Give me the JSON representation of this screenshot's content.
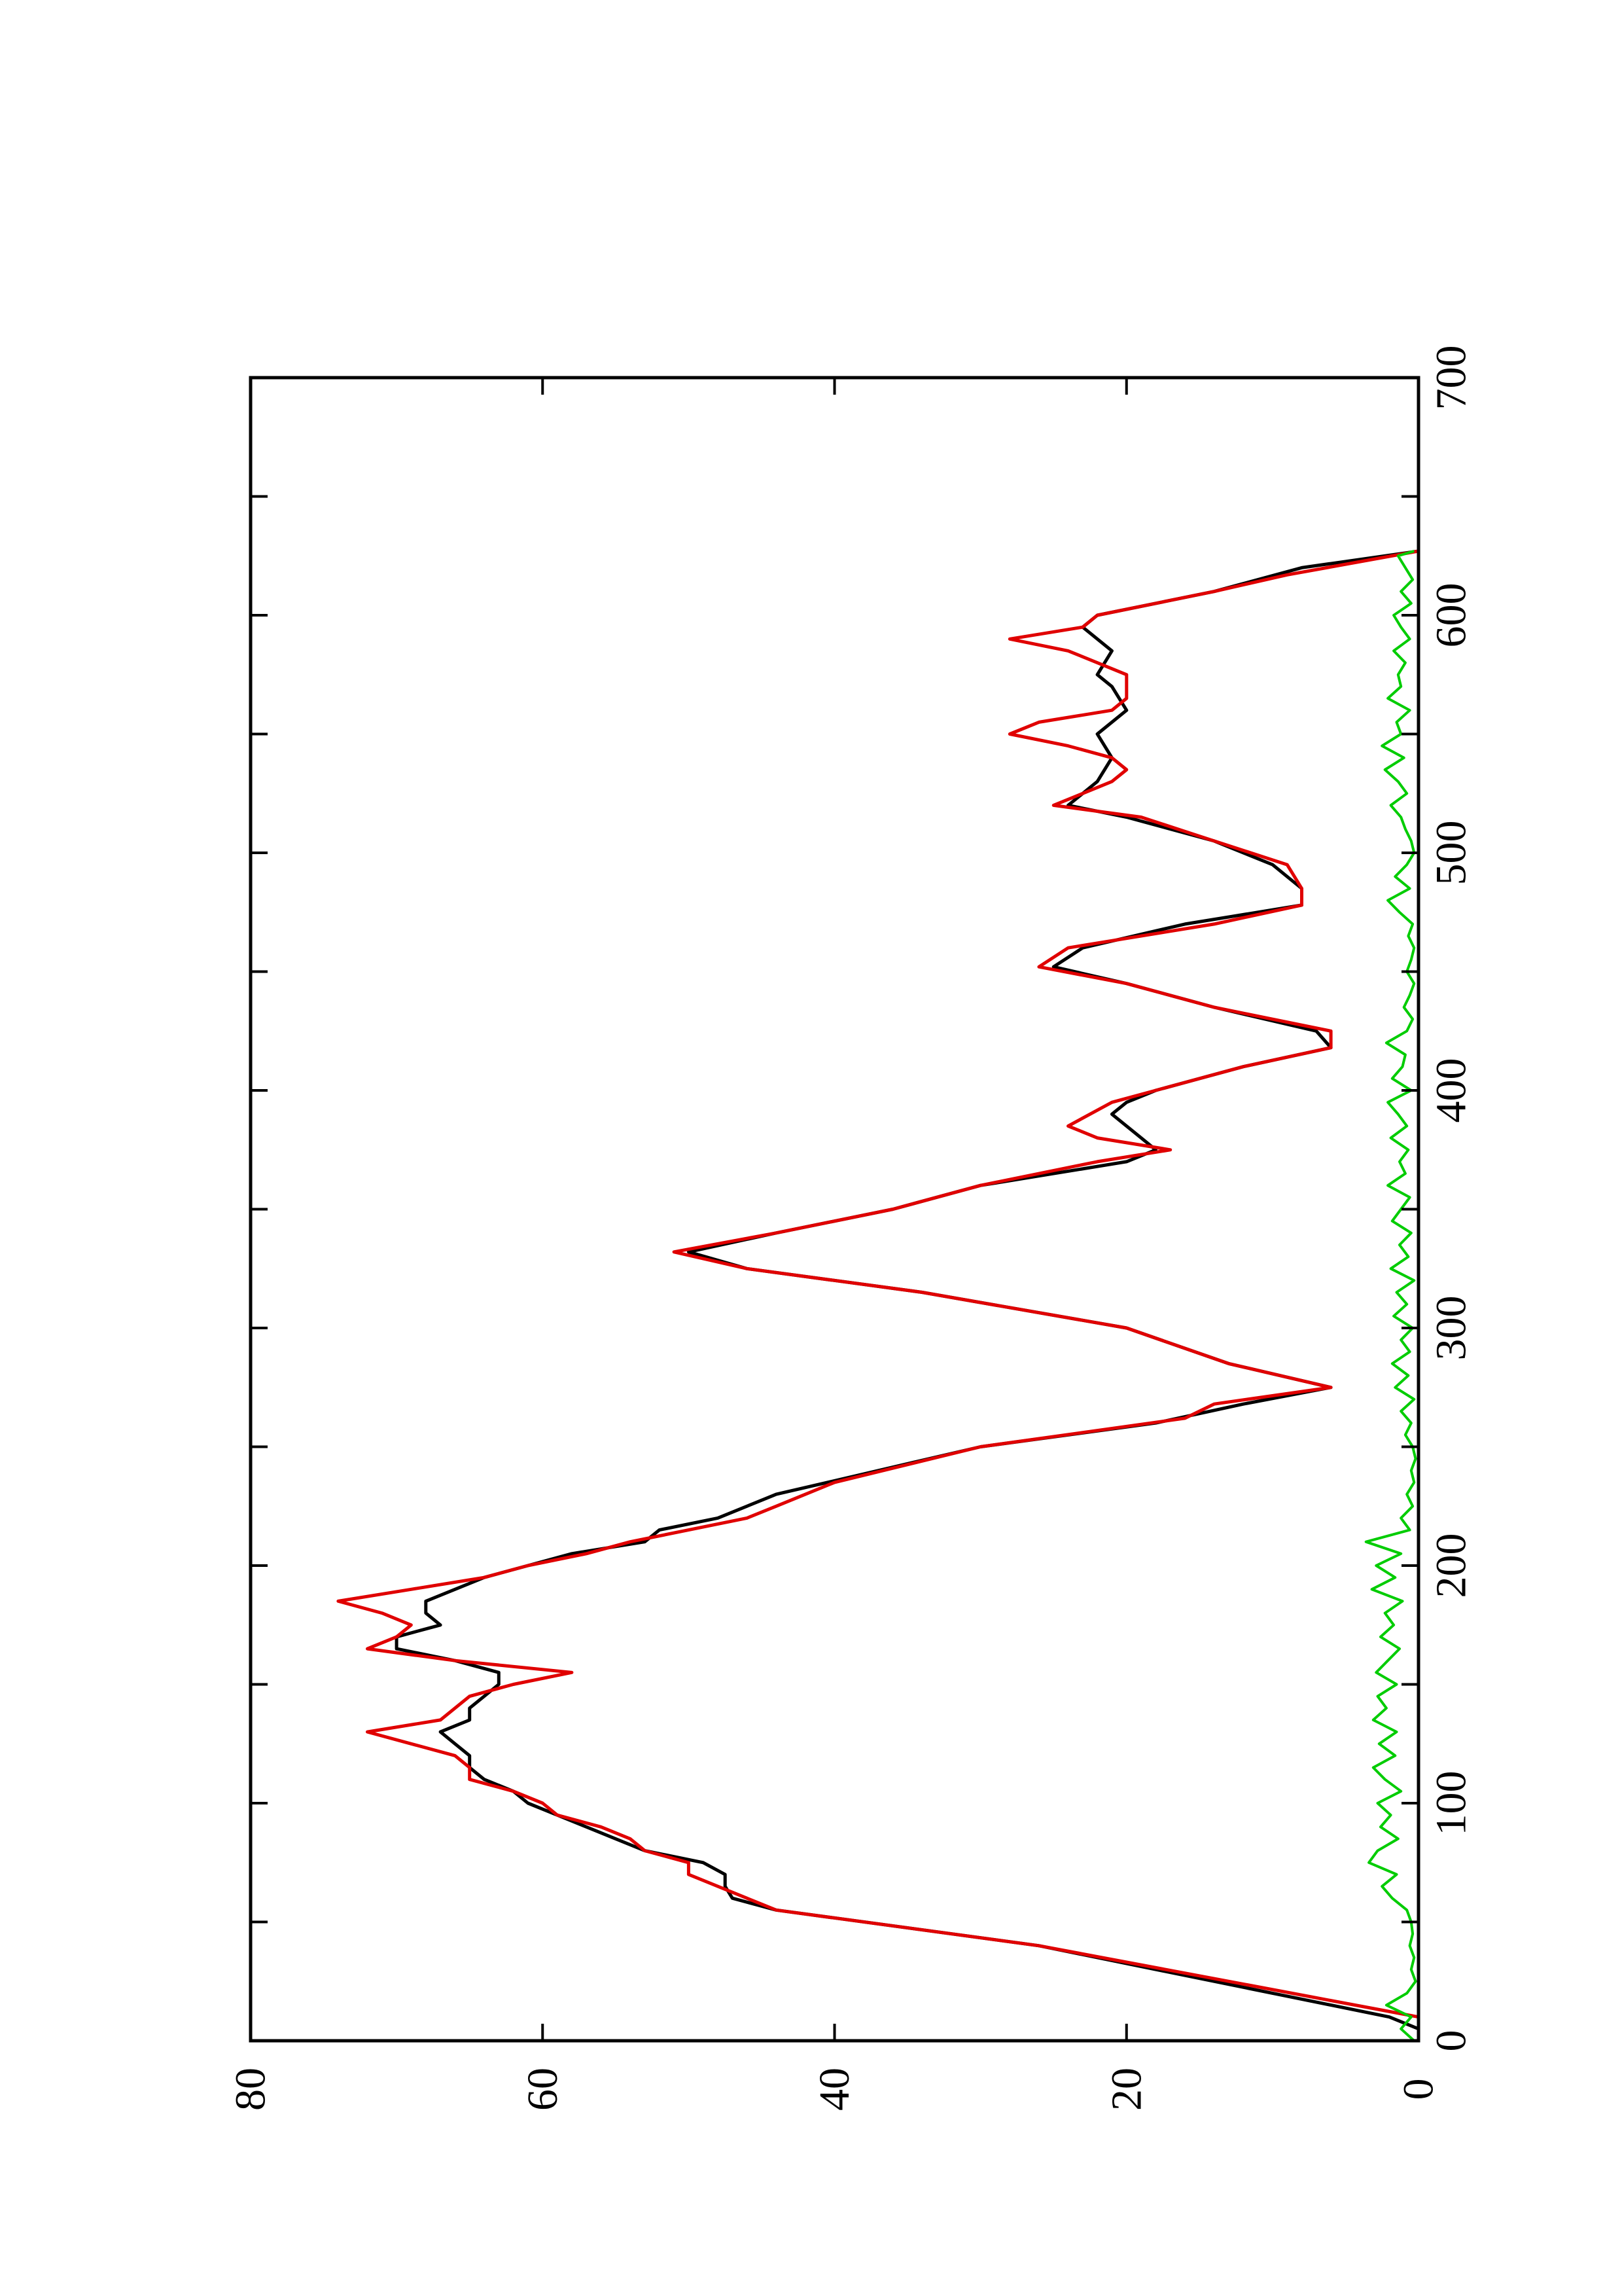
{
  "chart_data": {
    "type": "line",
    "orientation": "rotated-90-ccw",
    "title": "",
    "xlabel": "",
    "ylabel": "",
    "xlim": [
      0,
      700
    ],
    "ylim": [
      0,
      80
    ],
    "x_ticks": [
      0,
      100,
      200,
      300,
      400,
      500,
      600,
      700
    ],
    "x_tick_labels": [
      "0",
      "100",
      "200",
      "300",
      "400",
      "500",
      "600",
      "700"
    ],
    "y_ticks": [
      0,
      20,
      40,
      60,
      80
    ],
    "y_tick_labels": [
      "0",
      "20",
      "40",
      "60",
      "80"
    ],
    "grid": false,
    "legend": "none",
    "series": [
      {
        "color": "#000000",
        "style": "smooth",
        "x": [
          5,
          10,
          20,
          40,
          55,
          60,
          65,
          70,
          75,
          80,
          85,
          90,
          95,
          100,
          105,
          110,
          115,
          120,
          125,
          130,
          135,
          140,
          145,
          150,
          155,
          160,
          165,
          170,
          175,
          180,
          185,
          190,
          195,
          200,
          205,
          210,
          215,
          220,
          225,
          230,
          240,
          250,
          260,
          268,
          275,
          285,
          300,
          315,
          325,
          332,
          340,
          350,
          360,
          370,
          375,
          380,
          390,
          395,
          400,
          410,
          418,
          425,
          435,
          445,
          452,
          460,
          470,
          478,
          485,
          495,
          505,
          515,
          520,
          525,
          530,
          540,
          550,
          560,
          570,
          575,
          585,
          590,
          595,
          600,
          610,
          620,
          627
        ],
        "y": [
          0,
          2,
          10,
          26,
          44,
          47,
          47.5,
          47.5,
          49,
          53,
          55,
          57,
          59,
          61,
          62,
          64,
          65,
          65,
          66,
          67,
          65,
          65,
          64,
          63,
          63,
          66,
          70,
          70,
          67,
          68,
          68,
          66,
          64,
          61,
          58,
          53,
          52,
          48,
          46,
          44,
          37,
          30,
          18,
          12,
          6,
          13,
          20,
          34,
          46,
          50,
          44,
          36,
          30,
          20,
          18,
          19,
          21,
          20,
          18,
          12,
          6,
          7,
          14,
          20,
          25,
          23,
          16,
          8,
          8,
          10,
          14,
          20,
          24,
          23,
          22,
          21,
          22,
          20,
          21,
          22,
          21,
          22,
          23,
          22,
          14,
          8,
          0
        ]
      },
      {
        "color": "#e00000",
        "style": "step",
        "x": [
          0,
          10,
          40,
          55,
          60,
          65,
          70,
          75,
          80,
          85,
          90,
          95,
          100,
          105,
          110,
          115,
          120,
          125,
          130,
          135,
          140,
          145,
          150,
          155,
          160,
          165,
          170,
          175,
          180,
          185,
          190,
          195,
          200,
          205,
          210,
          215,
          220,
          225,
          235,
          250,
          262,
          268,
          275,
          285,
          300,
          315,
          325,
          332,
          340,
          350,
          360,
          370,
          375,
          380,
          385,
          395,
          400,
          410,
          418,
          425,
          435,
          445,
          452,
          460,
          470,
          478,
          485,
          495,
          505,
          515,
          520,
          525,
          530,
          535,
          540,
          545,
          550,
          555,
          560,
          565,
          570,
          575,
          580,
          585,
          590,
          595,
          600,
          610,
          617,
          627
        ],
        "y": [
          0,
          0,
          26,
          44,
          46,
          48,
          50,
          50,
          53,
          54,
          56,
          59,
          60,
          62,
          65,
          65,
          66,
          69,
          72,
          67,
          66,
          65,
          62,
          58,
          66,
          72,
          70,
          69,
          71,
          74,
          69,
          64,
          61,
          57,
          54,
          50,
          46,
          44,
          40,
          30,
          16,
          14,
          6,
          13,
          20,
          34,
          46,
          51,
          44,
          36,
          30,
          22,
          17,
          22,
          24,
          21,
          18,
          12,
          6,
          6,
          14,
          20,
          26,
          24,
          14,
          8,
          8,
          9,
          14,
          19,
          25,
          23,
          21,
          20,
          21,
          24,
          28,
          26,
          21,
          20,
          20,
          20,
          22,
          24,
          28,
          23,
          22,
          14,
          9,
          0
        ]
      },
      {
        "color": "#00cc00",
        "style": "noise",
        "x": [
          0,
          5,
          10,
          15,
          20,
          25,
          30,
          35,
          40,
          45,
          50,
          55,
          60,
          65,
          70,
          75,
          80,
          85,
          90,
          95,
          100,
          105,
          110,
          115,
          120,
          125,
          130,
          135,
          140,
          145,
          150,
          155,
          160,
          165,
          170,
          175,
          180,
          185,
          190,
          195,
          200,
          205,
          210,
          215,
          220,
          225,
          230,
          235,
          240,
          245,
          250,
          255,
          260,
          265,
          270,
          275,
          280,
          285,
          290,
          295,
          300,
          305,
          310,
          315,
          320,
          325,
          330,
          335,
          340,
          345,
          350,
          355,
          360,
          365,
          370,
          375,
          380,
          385,
          390,
          395,
          400,
          405,
          410,
          415,
          420,
          425,
          430,
          435,
          440,
          445,
          450,
          455,
          460,
          465,
          470,
          475,
          480,
          485,
          490,
          495,
          500,
          505,
          510,
          515,
          520,
          525,
          530,
          535,
          540,
          545,
          550,
          555,
          560,
          565,
          570,
          575,
          580,
          585,
          590,
          595,
          600,
          605,
          610,
          615,
          620,
          625,
          627
        ],
        "y": [
          0.3,
          1.2,
          0.5,
          2.2,
          0.8,
          0.2,
          0.5,
          0.3,
          0.6,
          0.4,
          0.5,
          0.8,
          1.8,
          2.5,
          1.5,
          3.4,
          2.8,
          1.4,
          2.6,
          1.9,
          2.8,
          1.2,
          2.3,
          3.1,
          1.6,
          2.7,
          1.5,
          3.1,
          2.2,
          2.8,
          1.5,
          2.9,
          2.1,
          1.3,
          2.6,
          1.7,
          2.3,
          1.1,
          3.2,
          1.6,
          2.9,
          1.2,
          3.6,
          0.6,
          1.2,
          0.4,
          0.8,
          0.3,
          0.5,
          0.2,
          0.4,
          0.9,
          0.5,
          1.2,
          0.3,
          1.6,
          0.7,
          1.8,
          0.6,
          1.2,
          0.4,
          1.7,
          0.8,
          1.5,
          0.3,
          1.9,
          0.7,
          1.3,
          0.5,
          1.8,
          1.2,
          0.6,
          2.1,
          0.9,
          1.3,
          0.7,
          1.9,
          0.8,
          1.4,
          2.1,
          0.5,
          1.8,
          1.1,
          0.9,
          2.2,
          0.8,
          0.4,
          1.0,
          0.6,
          0.3,
          0.8,
          0.5,
          0.3,
          0.7,
          0.4,
          1.3,
          2.1,
          0.6,
          1.6,
          0.8,
          0.3,
          0.5,
          0.9,
          1.2,
          1.9,
          0.8,
          1.4,
          2.3,
          1.0,
          2.5,
          1.2,
          1.5,
          0.6,
          2.1,
          1.2,
          1.4,
          0.9,
          1.7,
          0.6,
          1.2,
          1.7,
          0.5,
          1.2,
          0.4,
          0.9,
          1.4,
          0.3
        ]
      }
    ]
  }
}
